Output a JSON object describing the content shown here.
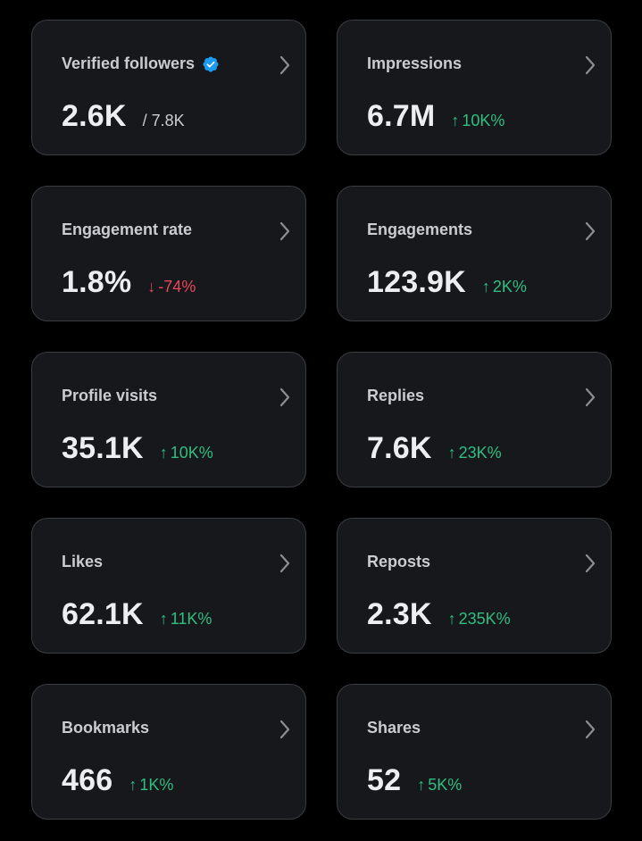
{
  "colors": {
    "background": "#000000",
    "card_bg": "#16181c",
    "card_border": "#3a3d42",
    "up": "#2fbf80",
    "down": "#e8485a",
    "verified": "#1d9bf0"
  },
  "cards": [
    {
      "label": "Verified followers",
      "value": "2.6K",
      "sub": "/ 7.8K",
      "verified_icon": "verified-badge-icon"
    },
    {
      "label": "Impressions",
      "value": "6.7M",
      "delta_arrow": "↑",
      "delta": "10K%",
      "direction": "up"
    },
    {
      "label": "Engagement rate",
      "value": "1.8%",
      "delta_arrow": "↓",
      "delta": "-74%",
      "direction": "down"
    },
    {
      "label": "Engagements",
      "value": "123.9K",
      "delta_arrow": "↑",
      "delta": "2K%",
      "direction": "up"
    },
    {
      "label": "Profile visits",
      "value": "35.1K",
      "delta_arrow": "↑",
      "delta": "10K%",
      "direction": "up"
    },
    {
      "label": "Replies",
      "value": "7.6K",
      "delta_arrow": "↑",
      "delta": "23K%",
      "direction": "up"
    },
    {
      "label": "Likes",
      "value": "62.1K",
      "delta_arrow": "↑",
      "delta": "11K%",
      "direction": "up"
    },
    {
      "label": "Reposts",
      "value": "2.3K",
      "delta_arrow": "↑",
      "delta": "235K%",
      "direction": "up"
    },
    {
      "label": "Bookmarks",
      "value": "466",
      "delta_arrow": "↑",
      "delta": "1K%",
      "direction": "up"
    },
    {
      "label": "Shares",
      "value": "52",
      "delta_arrow": "↑",
      "delta": "5K%",
      "direction": "up"
    }
  ]
}
